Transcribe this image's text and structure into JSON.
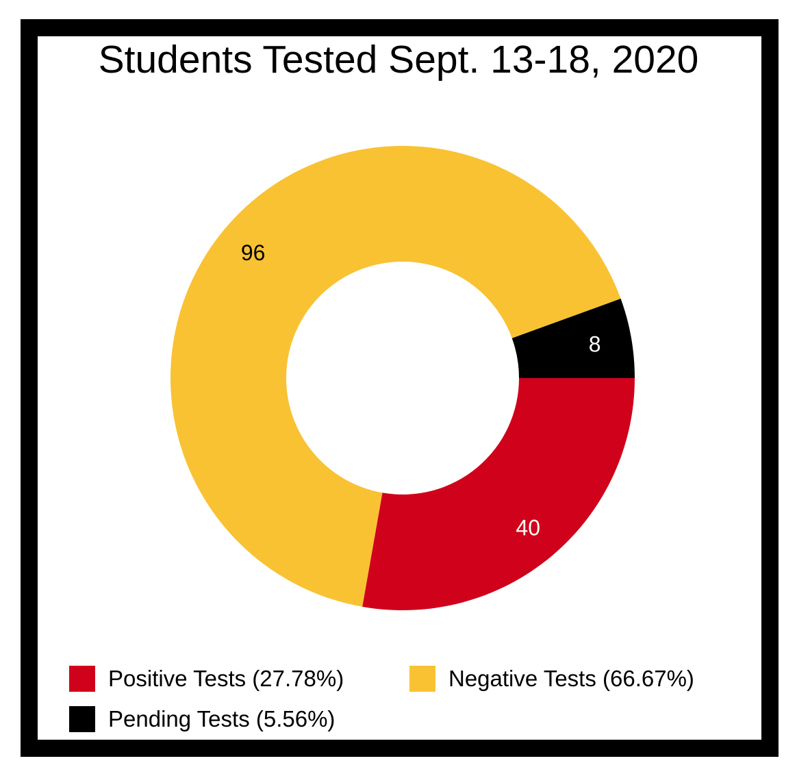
{
  "chart_data": {
    "type": "pie",
    "variant": "donut",
    "title": "Students Tested Sept. 13-18, 2020",
    "categories": [
      "Positive Tests",
      "Negative Tests",
      "Pending Tests"
    ],
    "values": [
      40,
      96,
      8
    ],
    "data_labels": [
      "40",
      "96",
      "8"
    ],
    "colors": [
      "#d0021b",
      "#f9c233",
      "#000000"
    ],
    "label_colors": [
      "#ffffff",
      "#000000",
      "#ffffff"
    ],
    "legend": {
      "placement": "bottom",
      "entries": [
        {
          "label": "Positive Tests (27.78%)",
          "color": "#d0021b"
        },
        {
          "label": "Negative Tests (66.67%)",
          "color": "#f9c233"
        },
        {
          "label": "Pending Tests (5.56%)",
          "color": "#000000"
        }
      ]
    }
  }
}
